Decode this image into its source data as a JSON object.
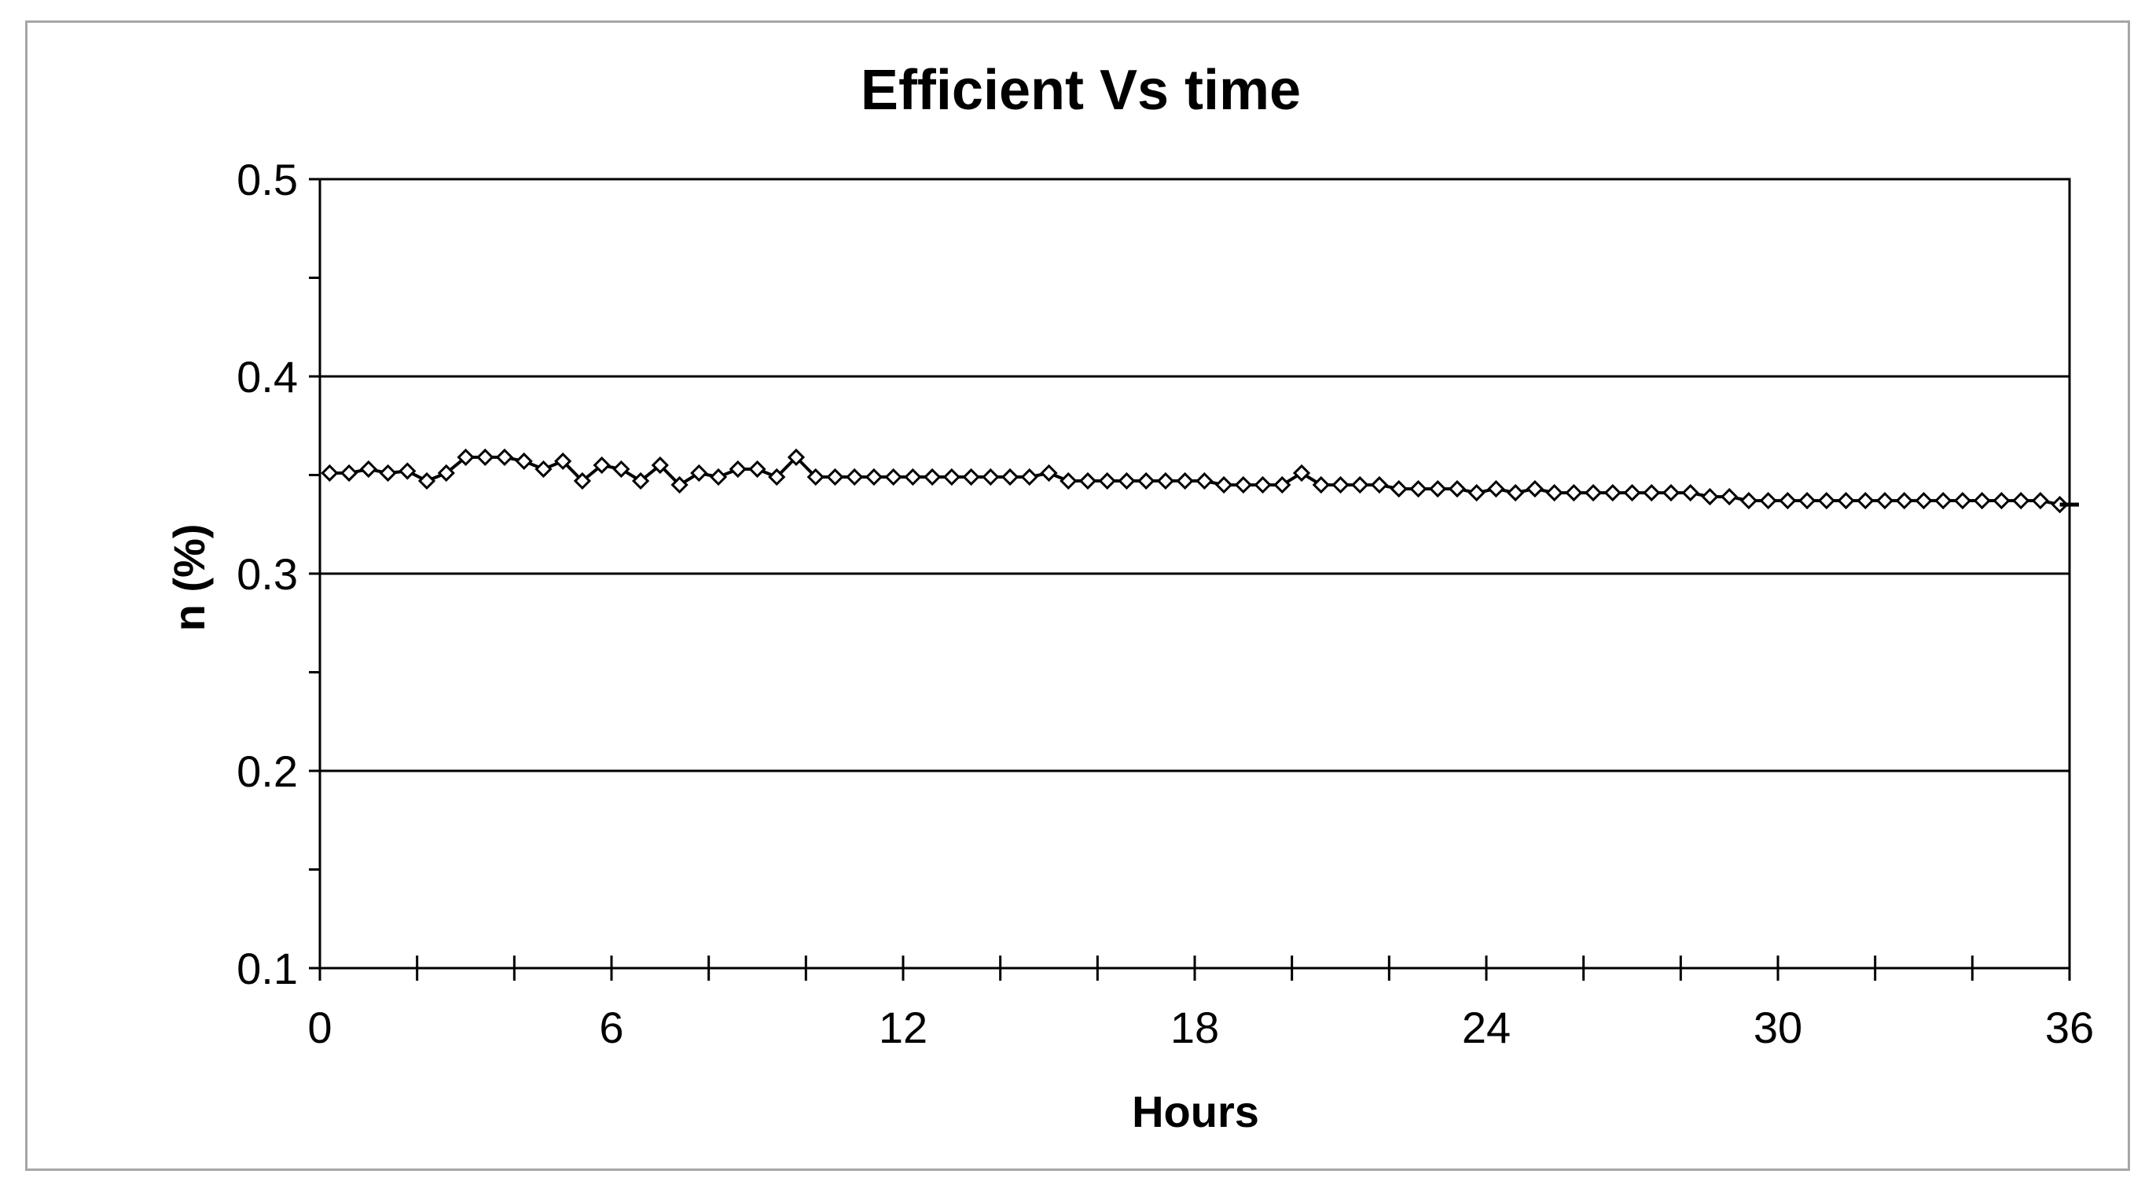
{
  "chart_data": {
    "type": "line",
    "title": "Efficient Vs time",
    "xlabel": "Hours",
    "ylabel": "n (%)",
    "xlim": [
      0,
      36
    ],
    "ylim": [
      0.1,
      0.5
    ],
    "x_ticks": [
      0,
      6,
      12,
      18,
      24,
      30,
      36
    ],
    "x_minor_step": 2,
    "y_ticks": [
      0.1,
      0.2,
      0.3,
      0.4,
      0.5
    ],
    "y_tick_labels": [
      "0.1",
      "0.2",
      "0.3",
      "0.4",
      "0.5"
    ],
    "y_minor_step": 0.05,
    "grid": "horizontal-major",
    "legend": "none",
    "marker": "diamond",
    "line_color": "#000000",
    "series": [
      {
        "x": [
          0.2,
          0.6,
          1.0,
          1.4,
          1.8,
          2.2,
          2.6,
          3.0,
          3.4,
          3.8,
          4.2,
          4.6,
          5.0,
          5.4,
          5.8,
          6.2,
          6.6,
          7.0,
          7.4,
          7.8,
          8.2,
          8.6,
          9.0,
          9.4,
          9.8,
          10.2,
          10.6,
          11.0,
          11.4,
          11.8,
          12.2,
          12.6,
          13.0,
          13.4,
          13.8,
          14.2,
          14.6,
          15.0,
          15.4,
          15.8,
          16.2,
          16.6,
          17.0,
          17.4,
          17.8,
          18.2,
          18.6,
          19.0,
          19.4,
          19.8,
          20.2,
          20.6,
          21.0,
          21.4,
          21.8,
          22.2,
          22.6,
          23.0,
          23.4,
          23.8,
          24.2,
          24.6,
          25.0,
          25.4,
          25.8,
          26.2,
          26.6,
          27.0,
          27.4,
          27.8,
          28.2,
          28.6,
          29.0,
          29.4,
          29.8,
          30.2,
          30.6,
          31.0,
          31.4,
          31.8,
          32.2,
          32.6,
          33.0,
          33.4,
          33.8,
          34.2,
          34.6,
          35.0,
          35.4,
          35.8
        ],
        "y": [
          0.351,
          0.351,
          0.353,
          0.351,
          0.352,
          0.347,
          0.351,
          0.359,
          0.359,
          0.359,
          0.357,
          0.353,
          0.357,
          0.347,
          0.355,
          0.353,
          0.347,
          0.355,
          0.345,
          0.351,
          0.349,
          0.353,
          0.353,
          0.349,
          0.359,
          0.349,
          0.349,
          0.349,
          0.349,
          0.349,
          0.349,
          0.349,
          0.349,
          0.349,
          0.349,
          0.349,
          0.349,
          0.351,
          0.347,
          0.347,
          0.347,
          0.347,
          0.347,
          0.347,
          0.347,
          0.347,
          0.345,
          0.345,
          0.345,
          0.345,
          0.351,
          0.345,
          0.345,
          0.345,
          0.345,
          0.343,
          0.343,
          0.343,
          0.343,
          0.341,
          0.343,
          0.341,
          0.343,
          0.341,
          0.341,
          0.341,
          0.341,
          0.341,
          0.341,
          0.341,
          0.341,
          0.339,
          0.339,
          0.337,
          0.337,
          0.337,
          0.337,
          0.337,
          0.337,
          0.337,
          0.337,
          0.337,
          0.337,
          0.337,
          0.337,
          0.337,
          0.337,
          0.337,
          0.337,
          0.335
        ]
      }
    ]
  }
}
